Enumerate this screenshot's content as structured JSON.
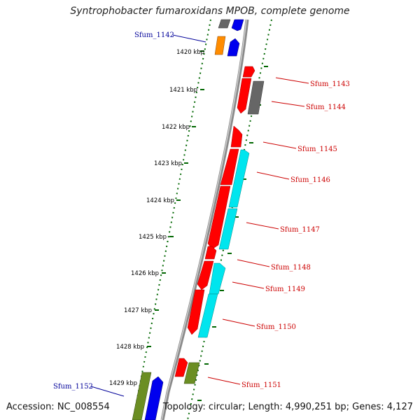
{
  "title": "Syntrophobacter fumaroxidans MPOB, complete genome",
  "accession": "Accession: NC_008554",
  "topology": "Topology: circular; Length: 4,990,251 bp; Genes: 4,127",
  "scale_ticks": [
    "1420 kbp",
    "1421 kbp",
    "1422 kbp",
    "1423 kbp",
    "1424 kbp",
    "1425 kbp",
    "1426 kbp",
    "1427 kbp",
    "1428 kbp",
    "1429 kbp"
  ],
  "colors": {
    "forward_label": "#cc0000",
    "reverse_label": "#000099",
    "backbone": "#8a8a8a",
    "tick": "#006600",
    "red": "#ff0000",
    "cyan": "#00e5ee",
    "olive": "#6b8e23",
    "blue": "#0000ee",
    "orange": "#ff8c00",
    "gray": "#666666"
  },
  "genes_forward": [
    {
      "name": "Sfum_1143"
    },
    {
      "name": "Sfum_1144"
    },
    {
      "name": "Sfum_1145"
    },
    {
      "name": "Sfum_1146"
    },
    {
      "name": "Sfum_1147"
    },
    {
      "name": "Sfum_1148"
    },
    {
      "name": "Sfum_1149"
    },
    {
      "name": "Sfum_1150"
    },
    {
      "name": "Sfum_1151"
    }
  ],
  "genes_reverse": [
    {
      "name": "Sfum_1142"
    },
    {
      "name": "Sfum_1152"
    }
  ]
}
